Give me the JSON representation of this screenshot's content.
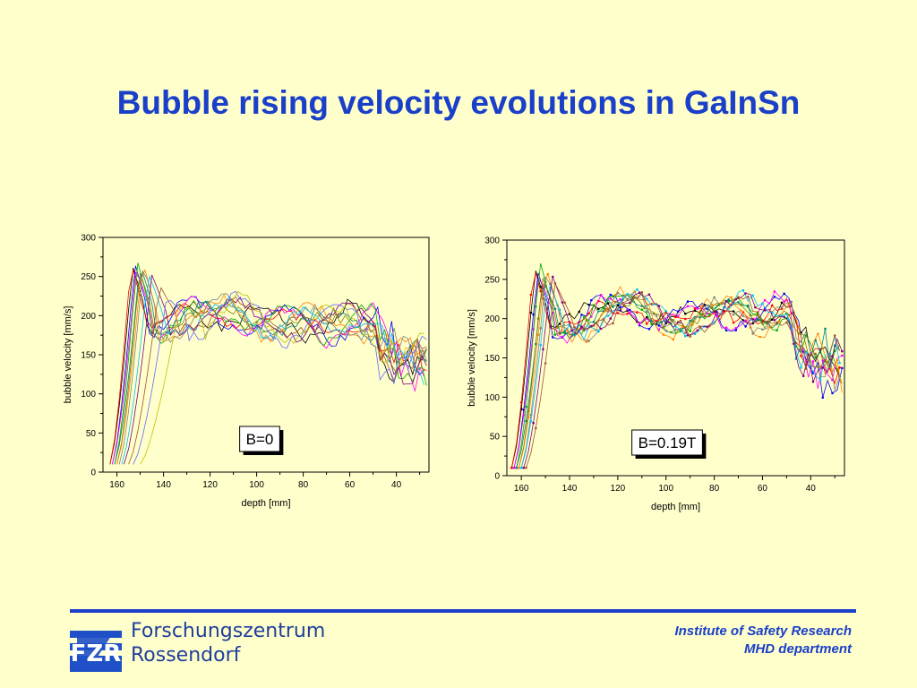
{
  "slide": {
    "title": "Bubble rising velocity evolutions in GaInSn"
  },
  "footer": {
    "logo_line1": "Forschungszentrum",
    "logo_line2": "Rossendorf",
    "logo_mark": "FZR",
    "institute_line1": "Institute of Safety Research",
    "institute_line2": "MHD department",
    "rule_color": "#1A3FC8"
  },
  "chart_data": [
    {
      "type": "line",
      "title": "",
      "xlabel": "depth [mm]",
      "ylabel": "bubble velocity [mm/s]",
      "xlim": [
        166,
        26
      ],
      "ylim": [
        0,
        300
      ],
      "x_ticks": [
        160,
        140,
        120,
        100,
        80,
        60,
        40
      ],
      "y_ticks": [
        0,
        50,
        100,
        150,
        200,
        250,
        300
      ],
      "annotation": "B=0",
      "markers": false,
      "series_colors": [
        "#000000",
        "#FF0000",
        "#0000FF",
        "#FF00FF",
        "#00AA00",
        "#008080",
        "#808000",
        "#FF8000",
        "#808080",
        "#00BFFF",
        "#800080",
        "#A0522D",
        "#6666FF",
        "#C0C000"
      ],
      "base_profile": {
        "x": [
          148,
          140,
          130,
          120,
          110,
          100,
          90,
          80,
          70,
          60,
          50,
          40
        ],
        "y": [
          200,
          190,
          198,
          195,
          205,
          198,
          190,
          188,
          185,
          200,
          190,
          160
        ]
      },
      "series": [
        {
          "x0": 163,
          "width": 16,
          "peak": 265,
          "seed": 1
        },
        {
          "x0": 163,
          "width": 15,
          "peak": 270,
          "seed": 2
        },
        {
          "x0": 162,
          "width": 16,
          "peak": 268,
          "seed": 3
        },
        {
          "x0": 162,
          "width": 17,
          "peak": 262,
          "seed": 4
        },
        {
          "x0": 161,
          "width": 16,
          "peak": 272,
          "seed": 5
        },
        {
          "x0": 161,
          "width": 18,
          "peak": 266,
          "seed": 6
        },
        {
          "x0": 160,
          "width": 16,
          "peak": 258,
          "seed": 7
        },
        {
          "x0": 160,
          "width": 18,
          "peak": 270,
          "seed": 8
        },
        {
          "x0": 159,
          "width": 17,
          "peak": 264,
          "seed": 9
        },
        {
          "x0": 158,
          "width": 19,
          "peak": 255,
          "seed": 10
        },
        {
          "x0": 157,
          "width": 20,
          "peak": 252,
          "seed": 11
        },
        {
          "x0": 155,
          "width": 22,
          "peak": 240,
          "seed": 12
        },
        {
          "x0": 153,
          "width": 24,
          "peak": 225,
          "seed": 13
        },
        {
          "x0": 150,
          "width": 28,
          "peak": 215,
          "seed": 14
        }
      ]
    },
    {
      "type": "line",
      "title": "",
      "xlabel": "depth [mm]",
      "ylabel": "bubble velocity [mm/s]",
      "xlim": [
        166,
        26
      ],
      "ylim": [
        0,
        300
      ],
      "x_ticks": [
        160,
        140,
        120,
        100,
        80,
        60,
        40
      ],
      "y_ticks": [
        0,
        50,
        100,
        150,
        200,
        250,
        300
      ],
      "annotation": "B=0.19T",
      "markers": true,
      "series_colors": [
        "#000000",
        "#FF0000",
        "#0000FF",
        "#FF00FF",
        "#00AA00",
        "#008080",
        "#808000",
        "#FF8000",
        "#808080",
        "#00BFFF",
        "#800080",
        "#A0522D",
        "#6666FF",
        "#C0C000"
      ],
      "base_profile": {
        "x": [
          150,
          140,
          130,
          120,
          110,
          100,
          90,
          80,
          70,
          60,
          50,
          40
        ],
        "y": [
          200,
          195,
          200,
          210,
          215,
          205,
          195,
          200,
          215,
          205,
          210,
          165
        ]
      },
      "series": [
        {
          "x0": 164,
          "width": 16,
          "peak": 265,
          "seed": 21
        },
        {
          "x0": 164,
          "width": 15,
          "peak": 270,
          "seed": 22
        },
        {
          "x0": 163,
          "width": 16,
          "peak": 262,
          "seed": 23
        },
        {
          "x0": 163,
          "width": 17,
          "peak": 258,
          "seed": 24
        },
        {
          "x0": 162,
          "width": 16,
          "peak": 275,
          "seed": 25
        },
        {
          "x0": 162,
          "width": 18,
          "peak": 250,
          "seed": 26
        },
        {
          "x0": 161,
          "width": 16,
          "peak": 255,
          "seed": 27
        },
        {
          "x0": 161,
          "width": 18,
          "peak": 268,
          "seed": 28
        },
        {
          "x0": 160,
          "width": 17,
          "peak": 260,
          "seed": 29
        },
        {
          "x0": 160,
          "width": 18,
          "peak": 248,
          "seed": 30
        },
        {
          "x0": 159,
          "width": 19,
          "peak": 258,
          "seed": 31
        },
        {
          "x0": 158,
          "width": 20,
          "peak": 245,
          "seed": 32
        }
      ]
    }
  ]
}
